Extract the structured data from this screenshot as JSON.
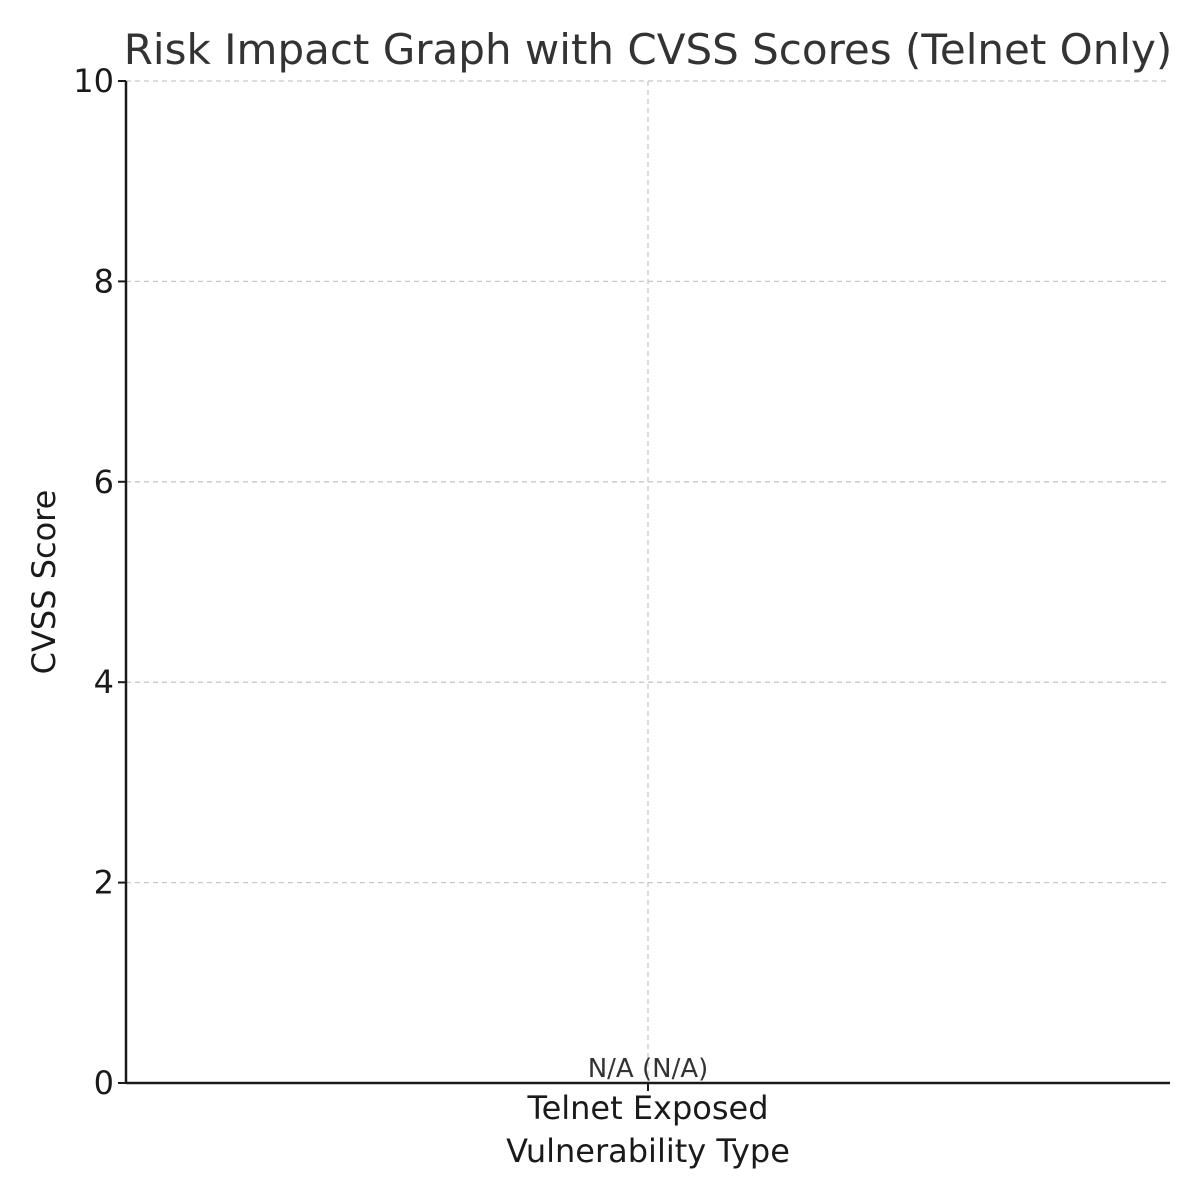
{
  "chart_data": {
    "type": "bar",
    "title": "Risk Impact Graph with CVSS Scores (Telnet Only)",
    "xlabel": "Vulnerability Type",
    "ylabel": "CVSS Score",
    "categories": [
      "Telnet Exposed"
    ],
    "values": [
      0
    ],
    "data_labels": [
      "N/A (N/A)"
    ],
    "ylim": [
      0,
      10
    ],
    "yticks": [
      0,
      2,
      4,
      6,
      8,
      10
    ],
    "grid": true,
    "grid_style": "dashed",
    "bar_color": "#d62728",
    "grid_color": "#c8c8c8",
    "text_color": "#1a1a1a"
  }
}
